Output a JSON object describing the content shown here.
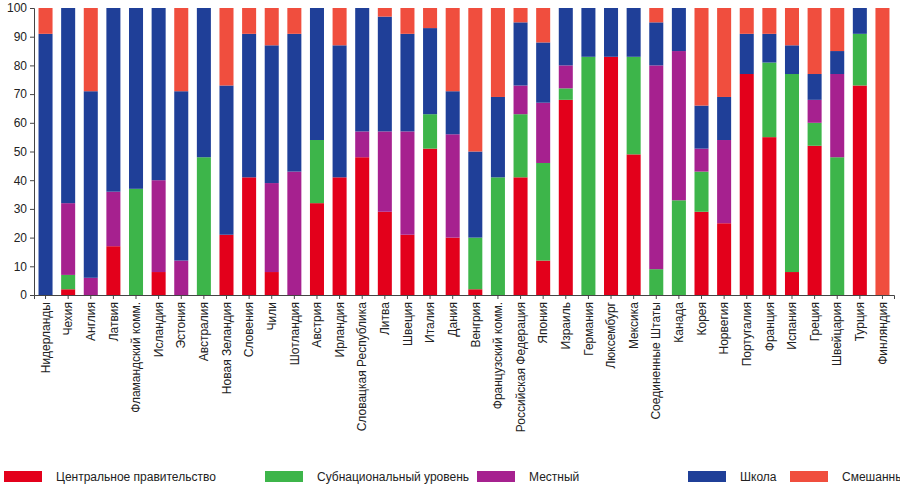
{
  "chart_data": {
    "type": "bar",
    "stacked": true,
    "legend": "bottom",
    "grid": false,
    "categories": [
      "Нидерланды",
      "Чехия",
      "Англия",
      "Латвия",
      "Фламандский комм.",
      "Исландия",
      "Эстония",
      "Австралия",
      "Новая Зеландия",
      "Словения",
      "Чили",
      "Шотландия",
      "Австрия",
      "Ирландия",
      "Словацкая Республика",
      "Литва",
      "Швеция",
      "Италия",
      "Дания",
      "Венгрия",
      "Французский комм.",
      "Российская Федерация",
      "Япония",
      "Израиль",
      "Германия",
      "Люксембург",
      "Мексика",
      "Соединенные Штаты",
      "Канада",
      "Корея",
      "Норвегия",
      "Португалия",
      "Франция",
      "Испания",
      "Греция",
      "Швейцария",
      "Турция",
      "Финляндия"
    ],
    "series": [
      {
        "name": "Центральное правительство",
        "color": "#e3001b",
        "values": [
          0,
          2,
          0,
          17,
          0,
          8,
          0,
          0,
          21,
          41,
          8,
          0,
          32,
          41,
          48,
          29,
          21,
          51,
          20,
          2,
          0,
          41,
          12,
          68,
          0,
          83,
          49,
          0,
          0,
          29,
          25,
          77,
          55,
          8,
          52,
          0,
          73,
          0
        ]
      },
      {
        "name": "Субнациональный уровень",
        "color": "#3db54a",
        "values": [
          0,
          5,
          0,
          0,
          37,
          0,
          0,
          48,
          0,
          0,
          0,
          0,
          22,
          0,
          0,
          0,
          0,
          12,
          0,
          18,
          41,
          22,
          34,
          4,
          83,
          0,
          34,
          9,
          33,
          14,
          0,
          0,
          26,
          69,
          8,
          48,
          18,
          0
        ]
      },
      {
        "name": "Местный",
        "color": "#a6218f",
        "values": [
          0,
          25,
          6,
          19,
          0,
          32,
          12,
          0,
          0,
          0,
          31,
          43,
          0,
          0,
          9,
          28,
          36,
          0,
          36,
          0,
          0,
          10,
          21,
          8,
          0,
          0,
          0,
          71,
          52,
          8,
          29,
          0,
          0,
          0,
          8,
          29,
          0,
          0
        ]
      },
      {
        "name": "Школа",
        "color": "#1f3f98",
        "values": [
          91,
          68,
          65,
          64,
          63,
          60,
          59,
          52,
          52,
          50,
          48,
          48,
          46,
          46,
          43,
          40,
          34,
          30,
          15,
          30,
          28,
          22,
          21,
          20,
          17,
          17,
          17,
          15,
          15,
          15,
          15,
          14,
          10,
          10,
          9,
          8,
          9,
          0
        ]
      },
      {
        "name": "Смешанный",
        "color": "#f04e3e",
        "values": [
          9,
          0,
          29,
          0,
          0,
          0,
          29,
          0,
          27,
          9,
          13,
          9,
          0,
          13,
          0,
          3,
          9,
          7,
          29,
          50,
          31,
          5,
          12,
          0,
          0,
          0,
          0,
          5,
          0,
          34,
          31,
          9,
          9,
          13,
          23,
          15,
          0,
          100
        ]
      }
    ],
    "ylim": [
      0,
      100
    ],
    "yticks": [
      0,
      10,
      20,
      30,
      40,
      50,
      60,
      70,
      80,
      90,
      100
    ]
  }
}
